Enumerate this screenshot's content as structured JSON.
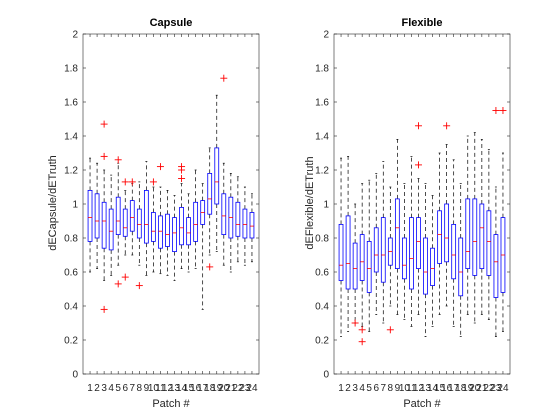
{
  "chart_data": [
    {
      "type": "box",
      "title": "Capsule",
      "xlabel": "Patch #",
      "ylabel": "dECapsule/dETruth",
      "ylim": [
        0,
        2
      ],
      "yticks": [
        "0",
        "0.2",
        "0.4",
        "0.6",
        "0.8",
        "1",
        "1.2",
        "1.4",
        "1.6",
        "1.8",
        "2"
      ],
      "categories": [
        "1",
        "2",
        "3",
        "4",
        "5",
        "6",
        "7",
        "8",
        "9",
        "10",
        "11",
        "12",
        "13",
        "14",
        "15",
        "16",
        "17",
        "18",
        "19",
        "20",
        "21",
        "22",
        "23",
        "24"
      ],
      "box_color": "#0000ff",
      "median_color": "#ff0000",
      "outlier_color": "#ff0000",
      "boxes": [
        {
          "whislo": 0.6,
          "q1": 0.78,
          "med": 0.92,
          "q3": 1.08,
          "whishi": 1.27,
          "fliers": []
        },
        {
          "whislo": 0.62,
          "q1": 0.8,
          "med": 0.9,
          "q3": 1.06,
          "whishi": 1.24,
          "fliers": []
        },
        {
          "whislo": 0.55,
          "q1": 0.74,
          "med": 0.9,
          "q3": 1.01,
          "whishi": 1.2,
          "fliers": [
            1.47,
            1.28,
            0.38
          ]
        },
        {
          "whislo": 0.58,
          "q1": 0.73,
          "med": 0.84,
          "q3": 0.97,
          "whishi": 1.17,
          "fliers": []
        },
        {
          "whislo": 0.64,
          "q1": 0.82,
          "med": 0.9,
          "q3": 1.04,
          "whishi": 1.24,
          "fliers": [
            1.26,
            0.53
          ]
        },
        {
          "whislo": 0.7,
          "q1": 0.81,
          "med": 0.86,
          "q3": 0.97,
          "whishi": 1.08,
          "fliers": [
            1.13,
            0.57
          ]
        },
        {
          "whislo": 0.7,
          "q1": 0.84,
          "med": 0.92,
          "q3": 1.02,
          "whishi": 1.12,
          "fliers": [
            1.13
          ]
        },
        {
          "whislo": 0.64,
          "q1": 0.8,
          "med": 0.88,
          "q3": 0.97,
          "whishi": 1.13,
          "fliers": [
            0.52
          ]
        },
        {
          "whislo": 0.58,
          "q1": 0.77,
          "med": 0.88,
          "q3": 1.08,
          "whishi": 1.25,
          "fliers": []
        },
        {
          "whislo": 0.6,
          "q1": 0.78,
          "med": 0.84,
          "q3": 0.95,
          "whishi": 1.1,
          "fliers": [
            1.13
          ]
        },
        {
          "whislo": 0.59,
          "q1": 0.74,
          "med": 0.84,
          "q3": 0.93,
          "whishi": 1.1,
          "fliers": [
            1.22
          ]
        },
        {
          "whislo": 0.58,
          "q1": 0.75,
          "med": 0.82,
          "q3": 0.94,
          "whishi": 1.08,
          "fliers": []
        },
        {
          "whislo": 0.55,
          "q1": 0.72,
          "med": 0.83,
          "q3": 0.92,
          "whishi": 1.05,
          "fliers": []
        },
        {
          "whislo": 0.62,
          "q1": 0.76,
          "med": 0.86,
          "q3": 0.98,
          "whishi": 1.12,
          "fliers": [
            1.22,
            1.2,
            1.15
          ]
        },
        {
          "whislo": 0.6,
          "q1": 0.76,
          "med": 0.83,
          "q3": 0.92,
          "whishi": 1.06,
          "fliers": []
        },
        {
          "whislo": 0.62,
          "q1": 0.78,
          "med": 0.88,
          "q3": 1.01,
          "whishi": 1.2,
          "fliers": []
        },
        {
          "whislo": 0.38,
          "q1": 0.88,
          "med": 0.95,
          "q3": 1.02,
          "whishi": 1.12,
          "fliers": []
        },
        {
          "whislo": 0.7,
          "q1": 0.94,
          "med": 1.03,
          "q3": 1.18,
          "whishi": 1.33,
          "fliers": [
            0.63
          ]
        },
        {
          "whislo": 0.72,
          "q1": 1.0,
          "med": 1.13,
          "q3": 1.33,
          "whishi": 1.64,
          "fliers": []
        },
        {
          "whislo": 0.64,
          "q1": 0.82,
          "med": 0.93,
          "q3": 1.06,
          "whishi": 1.24,
          "fliers": [
            1.74
          ]
        },
        {
          "whislo": 0.6,
          "q1": 0.8,
          "med": 0.92,
          "q3": 1.04,
          "whishi": 1.18,
          "fliers": []
        },
        {
          "whislo": 0.66,
          "q1": 0.81,
          "med": 0.88,
          "q3": 1.01,
          "whishi": 1.16,
          "fliers": []
        },
        {
          "whislo": 0.64,
          "q1": 0.8,
          "med": 0.88,
          "q3": 0.97,
          "whishi": 1.1,
          "fliers": []
        },
        {
          "whislo": 0.66,
          "q1": 0.8,
          "med": 0.87,
          "q3": 0.95,
          "whishi": 1.06,
          "fliers": []
        }
      ]
    },
    {
      "type": "box",
      "title": "Flexible",
      "xlabel": "Patch #",
      "ylabel": "dEFlexible/dETruth",
      "ylim": [
        0,
        2
      ],
      "yticks": [
        "0",
        "0.2",
        "0.4",
        "0.6",
        "0.8",
        "1",
        "1.2",
        "1.4",
        "1.6",
        "1.8",
        "2"
      ],
      "categories": [
        "1",
        "2",
        "3",
        "4",
        "5",
        "6",
        "7",
        "8",
        "9",
        "10",
        "11",
        "12",
        "13",
        "14",
        "15",
        "16",
        "17",
        "18",
        "19",
        "20",
        "21",
        "22",
        "23",
        "24"
      ],
      "box_color": "#0000ff",
      "median_color": "#ff0000",
      "outlier_color": "#ff0000",
      "boxes": [
        {
          "whislo": 0.22,
          "q1": 0.55,
          "med": 0.64,
          "q3": 0.88,
          "whishi": 1.27,
          "fliers": []
        },
        {
          "whislo": 0.25,
          "q1": 0.5,
          "med": 0.65,
          "q3": 0.93,
          "whishi": 1.28,
          "fliers": []
        },
        {
          "whislo": 0.3,
          "q1": 0.5,
          "med": 0.62,
          "q3": 0.77,
          "whishi": 1.0,
          "fliers": [
            0.3
          ]
        },
        {
          "whislo": 0.28,
          "q1": 0.55,
          "med": 0.66,
          "q3": 0.82,
          "whishi": 1.12,
          "fliers": [
            0.26,
            0.19
          ]
        },
        {
          "whislo": 0.25,
          "q1": 0.48,
          "med": 0.62,
          "q3": 0.78,
          "whishi": 1.14,
          "fliers": []
        },
        {
          "whislo": 0.35,
          "q1": 0.6,
          "med": 0.7,
          "q3": 0.86,
          "whishi": 1.18,
          "fliers": []
        },
        {
          "whislo": 0.3,
          "q1": 0.54,
          "med": 0.7,
          "q3": 0.92,
          "whishi": 1.25,
          "fliers": []
        },
        {
          "whislo": 0.4,
          "q1": 0.64,
          "med": 0.72,
          "q3": 0.8,
          "whishi": 1.1,
          "fliers": [
            0.26
          ]
        },
        {
          "whislo": 0.35,
          "q1": 0.62,
          "med": 0.86,
          "q3": 1.03,
          "whishi": 1.38,
          "fliers": []
        },
        {
          "whislo": 0.32,
          "q1": 0.56,
          "med": 0.64,
          "q3": 0.8,
          "whishi": 1.12,
          "fliers": []
        },
        {
          "whislo": 0.28,
          "q1": 0.5,
          "med": 0.68,
          "q3": 0.92,
          "whishi": 1.28,
          "fliers": []
        },
        {
          "whislo": 0.35,
          "q1": 0.62,
          "med": 0.78,
          "q3": 0.92,
          "whishi": 1.15,
          "fliers": [
            1.46,
            1.23
          ]
        },
        {
          "whislo": 0.22,
          "q1": 0.47,
          "med": 0.6,
          "q3": 0.8,
          "whishi": 1.12,
          "fliers": []
        },
        {
          "whislo": 0.28,
          "q1": 0.52,
          "med": 0.62,
          "q3": 0.74,
          "whishi": 1.05,
          "fliers": []
        },
        {
          "whislo": 0.35,
          "q1": 0.65,
          "med": 0.82,
          "q3": 0.96,
          "whishi": 1.3,
          "fliers": []
        },
        {
          "whislo": 0.4,
          "q1": 0.66,
          "med": 0.8,
          "q3": 1.0,
          "whishi": 1.35,
          "fliers": [
            1.46
          ]
        },
        {
          "whislo": 0.28,
          "q1": 0.56,
          "med": 0.7,
          "q3": 0.88,
          "whishi": 1.26,
          "fliers": []
        },
        {
          "whislo": 0.22,
          "q1": 0.46,
          "med": 0.6,
          "q3": 0.8,
          "whishi": 1.12,
          "fliers": []
        },
        {
          "whislo": 0.35,
          "q1": 0.62,
          "med": 0.72,
          "q3": 1.03,
          "whishi": 1.4,
          "fliers": []
        },
        {
          "whislo": 0.3,
          "q1": 0.58,
          "med": 0.78,
          "q3": 1.03,
          "whishi": 1.42,
          "fliers": []
        },
        {
          "whislo": 0.35,
          "q1": 0.62,
          "med": 0.86,
          "q3": 1.0,
          "whishi": 1.38,
          "fliers": []
        },
        {
          "whislo": 0.32,
          "q1": 0.58,
          "med": 0.78,
          "q3": 0.96,
          "whishi": 1.32,
          "fliers": []
        },
        {
          "whislo": 0.22,
          "q1": 0.45,
          "med": 0.66,
          "q3": 0.82,
          "whishi": 1.1,
          "fliers": [
            1.55
          ]
        },
        {
          "whislo": 0.25,
          "q1": 0.48,
          "med": 0.7,
          "q3": 0.92,
          "whishi": 1.3,
          "fliers": [
            1.55
          ]
        }
      ]
    }
  ]
}
